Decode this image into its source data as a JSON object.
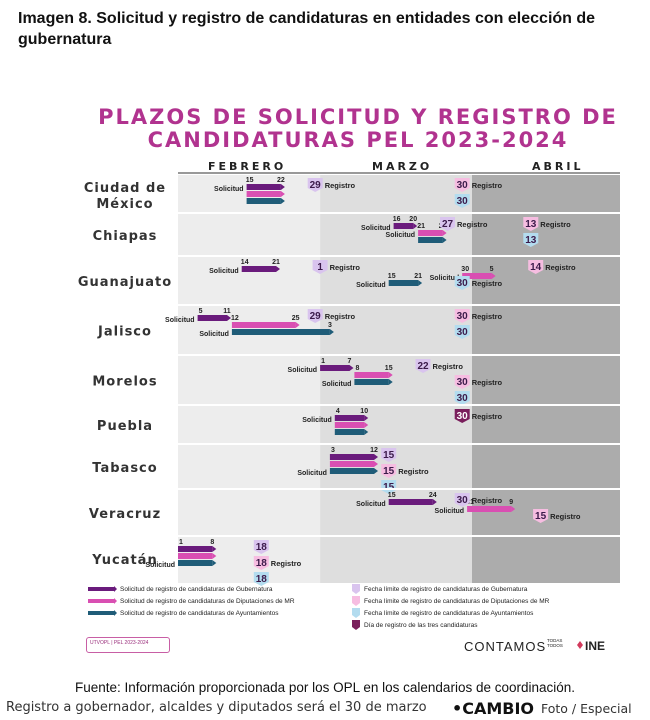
{
  "caption": "Imagen 8. Solicitud y registro de candidaturas en entidades con elección de gubernatura",
  "title_line1": "PLAZOS DE SOLICITUD Y REGISTRO DE",
  "title_line2": "CANDIDATURAS PEL 2023-2024",
  "months": [
    "FEBRERO",
    "MARZO",
    "ABRIL"
  ],
  "colors": {
    "gubernatura": "#6a1b7c",
    "diputaciones": "#d94fb2",
    "ayuntamientos": "#1f5c78",
    "marker_gubernatura": "#d9c4ee",
    "marker_diputaciones": "#f6bde1",
    "marker_ayuntamientos": "#b3dcef",
    "marker_tres": "#7a1f5c",
    "feb_bg": "#ededed",
    "mar_bg": "#dedede",
    "abr_bg": "#acacac"
  },
  "chart_data": {
    "type": "gantt",
    "title": "PLAZOS DE SOLICITUD Y REGISTRO DE CANDIDATURAS PEL 2023-2024",
    "axis": [
      "FEBRERO",
      "MARZO",
      "ABRIL"
    ],
    "rows": [
      {
        "state_lines": [
          "Ciudad de",
          "México"
        ],
        "bars": [
          {
            "cat": "gub",
            "start": "02-15",
            "end": "02-22",
            "start_label": "15",
            "end_label": "22",
            "label": "Solicitud"
          },
          {
            "cat": "dip",
            "start": "02-15",
            "end": "02-22"
          },
          {
            "cat": "ayu",
            "start": "02-15",
            "end": "02-22"
          }
        ],
        "markers": [
          {
            "cat": "gub",
            "date": "02-29",
            "label": "29",
            "text": "Registro",
            "lane": 0
          },
          {
            "cat": "dip",
            "date": "03-30",
            "label": "30",
            "text": "Registro",
            "lane": 0
          },
          {
            "cat": "ayu",
            "date": "03-30",
            "label": "30",
            "lane": 1
          }
        ]
      },
      {
        "state_lines": [
          "Chiapas"
        ],
        "bars": [
          {
            "cat": "gub",
            "start": "03-16",
            "end": "03-20",
            "start_label": "16",
            "end_label": "20",
            "label": "Solicitud"
          },
          {
            "cat": "dip",
            "start": "03-21",
            "end": "03-26",
            "start_label": "21",
            "end_label": "26",
            "label": "Solicitud"
          },
          {
            "cat": "ayu",
            "start": "03-21",
            "end": "03-26"
          }
        ],
        "markers": [
          {
            "cat": "gub",
            "date": "03-27",
            "label": "27",
            "text": "Registro",
            "lane": 0
          },
          {
            "cat": "dip",
            "date": "04-13",
            "label": "13",
            "text": "Registro",
            "lane": 0
          },
          {
            "cat": "ayu",
            "date": "04-13",
            "label": "13",
            "lane": 1
          }
        ]
      },
      {
        "state_lines": [
          "Guanajuato"
        ],
        "bars": [
          {
            "cat": "gub",
            "start": "02-14",
            "end": "02-21",
            "start_label": "14",
            "end_label": "21",
            "label": "Solicitud"
          },
          {
            "cat": "dip",
            "start": "03-30",
            "end": "04-05",
            "start_label": "30",
            "end_label": "5",
            "label": "Solicitud"
          },
          {
            "cat": "ayu",
            "start": "03-15",
            "end": "03-21",
            "start_label": "15",
            "end_label": "21",
            "label": "Solicitud"
          }
        ],
        "markers": [
          {
            "cat": "gub",
            "date": "03-01",
            "label": "1",
            "text": "Registro",
            "lane": 0
          },
          {
            "cat": "dip",
            "date": "04-14",
            "label": "14",
            "text": "Registro",
            "lane": 0
          },
          {
            "cat": "ayu",
            "date": "03-30",
            "label": "30",
            "text": "Registro",
            "lane": 1
          }
        ]
      },
      {
        "state_lines": [
          "Jalisco"
        ],
        "bars": [
          {
            "cat": "gub",
            "start": "02-05",
            "end": "02-11",
            "start_label": "5",
            "end_label": "11",
            "label": "Solicitud"
          },
          {
            "cat": "dip",
            "start": "02-12",
            "end": "02-25",
            "start_label": "12",
            "end_label": "25"
          },
          {
            "cat": "ayu",
            "start": "02-12",
            "end": "03-03",
            "end_label": "3",
            "label": "Solicitud"
          }
        ],
        "markers": [
          {
            "cat": "gub",
            "date": "02-29",
            "label": "29",
            "text": "Registro",
            "lane": 0
          },
          {
            "cat": "dip",
            "date": "03-30",
            "label": "30",
            "text": "Registro",
            "lane": 0
          },
          {
            "cat": "ayu",
            "date": "03-30",
            "label": "30",
            "lane": 1
          }
        ]
      },
      {
        "state_lines": [
          "Morelos"
        ],
        "bars": [
          {
            "cat": "gub",
            "start": "03-01",
            "end": "03-07",
            "start_label": "1",
            "end_label": "7",
            "label": "Solicitud"
          },
          {
            "cat": "dip",
            "start": "03-08",
            "end": "03-15",
            "start_label": "8",
            "end_label": "15"
          },
          {
            "cat": "ayu",
            "start": "03-08",
            "end": "03-15",
            "label": "Solicitud"
          }
        ],
        "markers": [
          {
            "cat": "gub",
            "date": "03-22",
            "label": "22",
            "text": "Registro",
            "lane": 0
          },
          {
            "cat": "dip",
            "date": "03-30",
            "label": "30",
            "text": "Registro",
            "lane": 1
          },
          {
            "cat": "ayu",
            "date": "03-30",
            "label": "30",
            "lane": 2
          }
        ]
      },
      {
        "state_lines": [
          "Puebla"
        ],
        "bars": [
          {
            "cat": "gub",
            "start": "03-04",
            "end": "03-10",
            "start_label": "4",
            "end_label": "10",
            "label": "Solicitud"
          },
          {
            "cat": "dip",
            "start": "03-04",
            "end": "03-10"
          },
          {
            "cat": "ayu",
            "start": "03-04",
            "end": "03-10"
          }
        ],
        "markers": [
          {
            "cat": "tres",
            "date": "03-30",
            "label": "30",
            "text": "Registro",
            "lane": 0
          }
        ]
      },
      {
        "state_lines": [
          "Tabasco"
        ],
        "bars": [
          {
            "cat": "gub",
            "start": "03-03",
            "end": "03-12",
            "start_label": "3",
            "end_label": "12"
          },
          {
            "cat": "dip",
            "start": "03-03",
            "end": "03-12"
          },
          {
            "cat": "ayu",
            "start": "03-03",
            "end": "03-12",
            "label": "Solicitud"
          }
        ],
        "markers": [
          {
            "cat": "gub",
            "date": "03-15",
            "label": "15",
            "lane": 0
          },
          {
            "cat": "dip",
            "date": "03-15",
            "label": "15",
            "text": "Registro",
            "lane": 1
          },
          {
            "cat": "ayu",
            "date": "03-15",
            "label": "15",
            "lane": 2
          }
        ]
      },
      {
        "state_lines": [
          "Veracruz"
        ],
        "bars": [
          {
            "cat": "gub",
            "start": "03-15",
            "end": "03-24",
            "start_label": "15",
            "end_label": "24",
            "label": "Solicitud"
          },
          {
            "cat": "dip",
            "start": "03-31",
            "end": "04-09",
            "start_label": "31",
            "end_label": "9",
            "label": "Solicitud"
          }
        ],
        "markers": [
          {
            "cat": "gub",
            "date": "03-30",
            "label": "30",
            "text": "Registro",
            "lane": 0
          },
          {
            "cat": "dip",
            "date": "04-15",
            "label": "15",
            "text": "Registro",
            "lane": 1
          }
        ]
      },
      {
        "state_lines": [
          "Yucatán"
        ],
        "bars": [
          {
            "cat": "gub",
            "start": "02-01",
            "end": "02-08",
            "start_label": "1",
            "end_label": "8"
          },
          {
            "cat": "dip",
            "start": "02-01",
            "end": "02-08"
          },
          {
            "cat": "ayu",
            "start": "02-01",
            "end": "02-08",
            "label": "Solicitud"
          }
        ],
        "markers": [
          {
            "cat": "gub",
            "date": "02-18",
            "label": "18",
            "lane": 0
          },
          {
            "cat": "dip",
            "date": "02-18",
            "label": "18",
            "text": "Registro",
            "lane": 1
          },
          {
            "cat": "ayu",
            "date": "02-18",
            "label": "18",
            "lane": 2
          }
        ]
      }
    ],
    "legend_left": [
      {
        "cat": "gub",
        "text": "Solicitud de registro de candidaturas de Gubernatura"
      },
      {
        "cat": "dip",
        "text": "Solicitud de registro de candidaturas de Diputaciones de MR"
      },
      {
        "cat": "ayu",
        "text": "Solicitud de registro de candidaturas de Ayuntamientos"
      }
    ],
    "legend_right": [
      {
        "cat": "gub",
        "text": "Fecha límite de registro de candidaturas de Gubernatura"
      },
      {
        "cat": "dip",
        "text": "Fecha límite de registro de candidaturas de Diputaciones de MR"
      },
      {
        "cat": "ayu",
        "text": "Fecha límite de registro de candidaturas de Ayuntamientos"
      },
      {
        "cat": "tres",
        "text": "Día de registro de las tres candidaturas"
      }
    ]
  },
  "logo_left_text": "UTVOPL | PEL 2023-2024",
  "contamos_text": "CONTAMOS",
  "contamos_sub": "TODAS TODOS",
  "ine_text": "INE",
  "source": "Fuente: Información proporcionada por los OPL en los calendarios de coordinación.",
  "photo_caption": "Registro a gobernador, alcaldes y diputados será el 30 de marzo",
  "cambio": "•CAMBIO",
  "credit": "Foto / Especial"
}
